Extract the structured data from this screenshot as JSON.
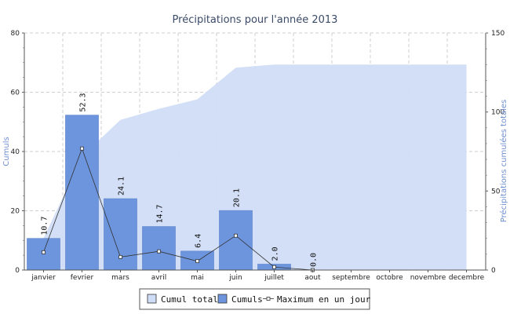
{
  "chart_data": {
    "type": "bar",
    "title": "Précipitations pour l'année 2013",
    "ylabel": "Cumuls",
    "ylabel_right": "Précipitations cumulées totales",
    "ylim": [
      0,
      80
    ],
    "ylim_right": [
      0,
      150
    ],
    "yticks": [
      "0",
      "20",
      "40",
      "60",
      "80"
    ],
    "yticks_right": [
      "0",
      "50",
      "100",
      "150"
    ],
    "grid": true,
    "legend_position": "bottom",
    "categories": [
      "janvier",
      "fevrier",
      "mars",
      "avril",
      "mai",
      "juin",
      "juillet",
      "aout",
      "septembre",
      "octobre",
      "novembre",
      "decembre"
    ],
    "series": [
      {
        "name": "Cumul total",
        "type": "area",
        "axis": "right",
        "color": "#d0ddf6",
        "values": [
          20.0,
          72.0,
          95.0,
          102.0,
          108.0,
          128.0,
          130.0,
          130.0,
          130.0,
          130.0,
          130.0,
          130.0
        ]
      },
      {
        "name": "Cumuls",
        "type": "bar",
        "axis": "left",
        "color": "#6d95dd",
        "values": [
          10.7,
          52.3,
          24.1,
          14.7,
          6.4,
          20.1,
          2.0,
          0.0,
          null,
          null,
          null,
          null
        ],
        "labels": [
          "10.7",
          "52.3",
          "24.1",
          "14.7",
          "6.4",
          "20.1",
          "2.0",
          "0.0",
          "",
          "",
          "",
          ""
        ]
      },
      {
        "name": "Maximum en un jour",
        "type": "line",
        "axis": "left",
        "color": "#333333",
        "values": [
          6.0,
          41.0,
          4.4,
          6.3,
          3.0,
          11.6,
          1.0,
          0.0,
          null,
          null,
          null,
          null
        ]
      }
    ]
  }
}
